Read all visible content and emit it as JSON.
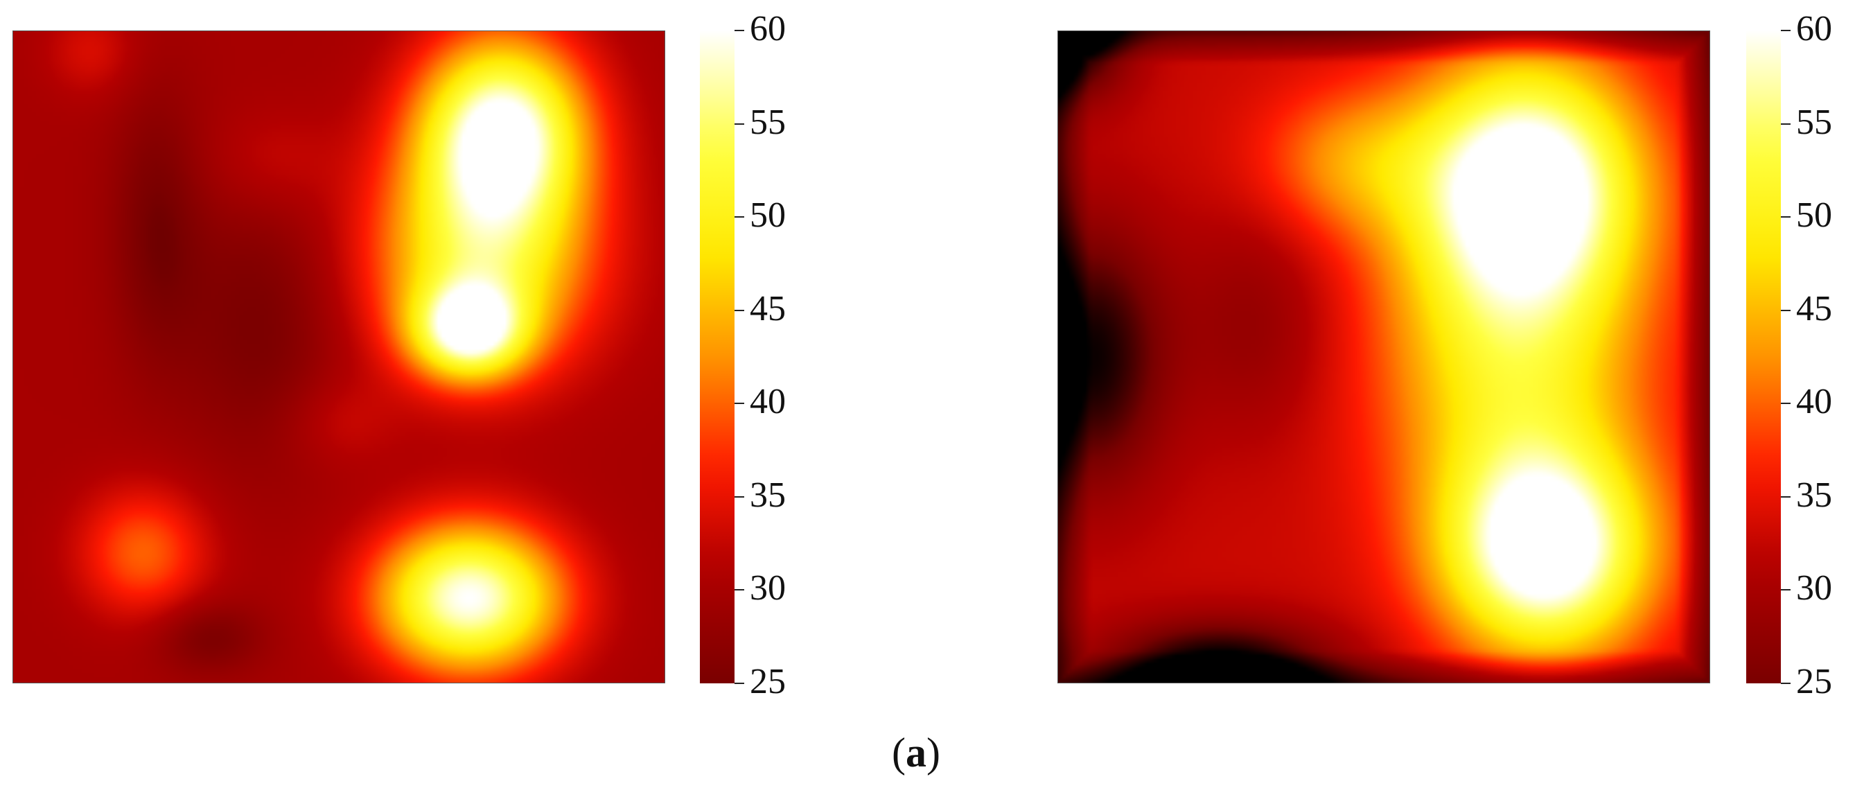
{
  "caption": {
    "open": "(",
    "letter": "a",
    "close": ")"
  },
  "colormap": {
    "name": "hot",
    "stops": [
      {
        "t": 0.0,
        "color": "#000000"
      },
      {
        "t": 0.18,
        "color": "#7a0000"
      },
      {
        "t": 0.33,
        "color": "#b30000"
      },
      {
        "t": 0.45,
        "color": "#ff1a00"
      },
      {
        "t": 0.58,
        "color": "#ff8c00"
      },
      {
        "t": 0.72,
        "color": "#ffea00"
      },
      {
        "t": 0.85,
        "color": "#ffff40"
      },
      {
        "t": 1.0,
        "color": "#ffffff"
      }
    ]
  },
  "chart_data": [
    {
      "type": "heatmap",
      "title": "",
      "xlabel": "",
      "ylabel": "",
      "colorbar": {
        "min": 25,
        "max": 60,
        "ticks": [
          25,
          30,
          35,
          40,
          45,
          50,
          55,
          60
        ]
      },
      "ticks_text": [
        "25",
        "30",
        "35",
        "40",
        "45",
        "50",
        "55",
        "60"
      ],
      "features": [
        {
          "x": 0.75,
          "y": 0.15,
          "value": 60,
          "sx": 0.09,
          "sy": 0.1
        },
        {
          "x": 0.72,
          "y": 0.35,
          "value": 51,
          "sx": 0.12,
          "sy": 0.12
        },
        {
          "x": 0.7,
          "y": 0.46,
          "value": 54,
          "sx": 0.06,
          "sy": 0.05
        },
        {
          "x": 0.7,
          "y": 0.87,
          "value": 60,
          "sx": 0.1,
          "sy": 0.08
        },
        {
          "x": 0.2,
          "y": 0.8,
          "value": 40,
          "sx": 0.07,
          "sy": 0.07
        },
        {
          "x": 0.12,
          "y": 0.03,
          "value": 34,
          "sx": 0.05,
          "sy": 0.05
        },
        {
          "x": 0.4,
          "y": 0.2,
          "value": 33,
          "sx": 0.07,
          "sy": 0.06
        },
        {
          "x": 0.5,
          "y": 0.6,
          "value": 33,
          "sx": 0.06,
          "sy": 0.05
        },
        {
          "x": 0.38,
          "y": 0.45,
          "value": 25,
          "sx": 0.09,
          "sy": 0.15
        },
        {
          "x": 0.22,
          "y": 0.3,
          "value": 25,
          "sx": 0.05,
          "sy": 0.15
        },
        {
          "x": 0.3,
          "y": 0.93,
          "value": 25,
          "sx": 0.06,
          "sy": 0.04
        }
      ],
      "base_value": 30
    },
    {
      "type": "heatmap",
      "title": "",
      "xlabel": "",
      "ylabel": "",
      "colorbar": {
        "min": 25,
        "max": 60,
        "ticks": [
          25,
          30,
          35,
          40,
          45,
          50,
          55,
          60
        ]
      },
      "ticks_text": [
        "25",
        "30",
        "35",
        "40",
        "45",
        "50",
        "55",
        "60"
      ],
      "features": [
        {
          "x": 0.72,
          "y": 0.23,
          "value": 62,
          "sx": 0.12,
          "sy": 0.13
        },
        {
          "x": 0.75,
          "y": 0.8,
          "value": 62,
          "sx": 0.11,
          "sy": 0.11
        },
        {
          "x": 0.7,
          "y": 0.5,
          "value": 50,
          "sx": 0.14,
          "sy": 0.2
        },
        {
          "x": 0.45,
          "y": 0.2,
          "value": 42,
          "sx": 0.1,
          "sy": 0.08
        },
        {
          "x": 0.05,
          "y": 0.5,
          "value": 18,
          "sx": 0.08,
          "sy": 0.14
        },
        {
          "x": 0.25,
          "y": 0.98,
          "value": 15,
          "sx": 0.12,
          "sy": 0.05
        },
        {
          "x": 0.02,
          "y": 0.02,
          "value": 18,
          "sx": 0.06,
          "sy": 0.06
        },
        {
          "x": 0.2,
          "y": 0.75,
          "value": 33,
          "sx": 0.07,
          "sy": 0.06
        },
        {
          "x": 0.3,
          "y": 0.45,
          "value": 28,
          "sx": 0.08,
          "sy": 0.12
        }
      ],
      "base_value": 33,
      "edge_dark": true
    }
  ]
}
